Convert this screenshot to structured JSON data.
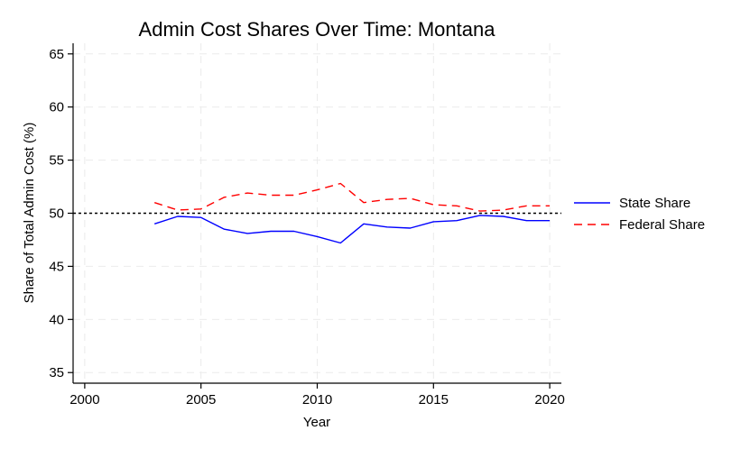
{
  "chart_data": {
    "type": "line",
    "title": "Admin Cost Shares Over Time: Montana",
    "xlabel": "Year",
    "ylabel": "Share of Total Admin Cost (%)",
    "xlim": [
      1999.5,
      2020.5
    ],
    "ylim": [
      34,
      66
    ],
    "xticks": [
      2000,
      2005,
      2010,
      2015,
      2020
    ],
    "yticks": [
      35,
      40,
      45,
      50,
      55,
      60,
      65
    ],
    "grid": true,
    "legend_position": "right",
    "reference_line": {
      "y": 50,
      "style": "dotted",
      "color": "#000000"
    },
    "x": [
      2003,
      2004,
      2005,
      2006,
      2007,
      2008,
      2009,
      2010,
      2011,
      2012,
      2013,
      2014,
      2015,
      2016,
      2017,
      2018,
      2019,
      2020
    ],
    "series": [
      {
        "name": "State Share",
        "color": "#0000ff",
        "dash": "solid",
        "values": [
          49.0,
          49.7,
          49.6,
          48.5,
          48.1,
          48.3,
          48.3,
          47.8,
          47.2,
          49.0,
          48.7,
          48.6,
          49.2,
          49.3,
          49.8,
          49.7,
          49.3,
          49.3
        ]
      },
      {
        "name": "Federal Share",
        "color": "#ff0000",
        "dash": "dashed",
        "values": [
          51.0,
          50.3,
          50.4,
          51.5,
          51.9,
          51.7,
          51.7,
          52.2,
          52.8,
          51.0,
          51.3,
          51.4,
          50.8,
          50.7,
          50.2,
          50.3,
          50.7,
          50.7
        ]
      }
    ]
  }
}
